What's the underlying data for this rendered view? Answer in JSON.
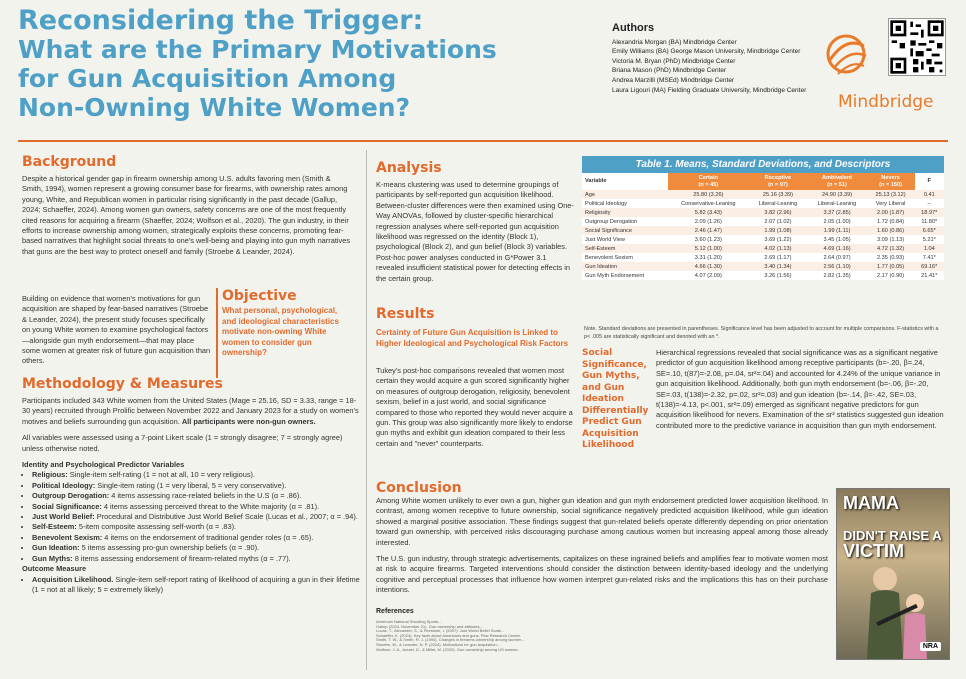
{
  "title": {
    "line1": "Reconsidering the Trigger:",
    "line2": "What are the Primary Motivations",
    "line3": "for Gun Acquisition Among",
    "line4": "Non-Owning White Women?"
  },
  "authors": {
    "heading": "Authors",
    "list": [
      "Alexandria Morgan (BA) Mindbridge Center",
      "Emily Williams (BA) George Mason University, Mindbridge Center",
      "Victoria M. Bryan (PhD) Mindbridge Center",
      "Briana Mason (PhD) Mindbridge Center",
      "Andrea Marzilli (MSEd) Mindbridge Center",
      "Laura Ligouri (MA) Fielding Graduate University, Mindbridge Center"
    ]
  },
  "brand": "Mindbridge",
  "background": {
    "heading": "Background",
    "p1": "Despite a historical gender gap in firearm ownership among U.S. adults favoring men (Smith & Smith, 1994), women represent a growing consumer base for firearms, with ownership rates among young, White, and Republican women in particular rising significantly in the past decade (Gallup, 2024; Schaeffer, 2024). Among women gun owners, safety concerns are one of the most frequently cited reasons for acquiring a firearm (Shaeffer, 2024; Wolfson et al., 2020). The gun industry, in their efforts to increase ownership among women, strategically exploits these concerns, promoting fear-based narratives that highlight social threats to one's well-being and playing into gun myth narratives that guns are the best way to protect oneself and family (Stroebe & Leander, 2024).",
    "p2": "Building on evidence that women's motivations for gun acquisition are shaped by fear-based narratives (Stroebe & Leander, 2024), the present study focuses specifically on young White women to examine psychological factors—alongside gun myth endorsement—that may place some women at greater risk of future gun acquisition than others."
  },
  "objective": {
    "heading": "Objective",
    "text": "What personal, psychological, and ideological characteristics motivate non-owning White women to consider gun ownership?"
  },
  "methods": {
    "heading": "Methodology & Measures",
    "p1": "Participants included 343 White women from the United States (Mage = 25.16, SD = 3.33, range = 18-30 years) recruited through Prolific between November 2022 and January 2023 for a study on women's motives and beliefs surrounding gun acquisition.",
    "p1b": "All participants were non-gun owners.",
    "p2": "All variables were assessed using a 7-point Likert scale (1 = strongly disagree; 7 = strongly agree) unless otherwise noted.",
    "predHeading": "Identity and Psychological Predictor Variables",
    "preds": [
      {
        "name": "Religious:",
        "text": " Single-item self-rating (1 = not at all, 10 = very religious)."
      },
      {
        "name": "Political Ideology:",
        "text": " Single-item rating (1 = very liberal, 5 = very conservative)."
      },
      {
        "name": "Outgroup Derogation:",
        "text": " 4 items assessing race-related beliefs in the U.S (α = .86)."
      },
      {
        "name": "Social Significance:",
        "text": " 4 items assessing perceived threat to the White majority (α = .81)."
      },
      {
        "name": "Just World Belief:",
        "text": " Procedural and Distributive Just World Belief Scale (Lucas et al., 2007; α = .94)."
      },
      {
        "name": "Self-Esteem:",
        "text": " 5-item composite assessing self-worth (α = .83)."
      },
      {
        "name": "Benevolent Sexism:",
        "text": " 4 items on the endorsement of traditional gender roles (α = .65)."
      },
      {
        "name": "Gun Ideation:",
        "text": " 5 items assessing pro-gun ownership beliefs (α = .90)."
      },
      {
        "name": "Gun Myths:",
        "text": " 8 items assessing endorsement of firearm-related myths (α = .77)."
      }
    ],
    "outcomeHeading": "Outcome Measure",
    "outcome": {
      "name": "Acquisition Likelihood.",
      "text": " Single-item self-report rating of likelihood of acquiring a gun in their lifetime (1 = not at all likely; 5 = extremely likely)"
    }
  },
  "analysis": {
    "heading": "Analysis",
    "text": "K-means clustering was used to determine groupings of participants by self-reported gun acquisition likelihood. Between-cluster differences were then examined using One-Way ANOVAs, followed by cluster-specific hierarchical regression analyses where self-reported gun acquisition likelihood was regressed on the identity (Block 1), psychological (Block 2), and gun belief (Block 3) variables. Post-hoc power analyses conducted in G*Power 3.1 revealed insufficient statistical power for detecting effects in the certain group."
  },
  "results": {
    "heading": "Results",
    "subheading": "Certainty of Future Gun Acquisition is Linked to Higher Ideological and Psychological Risk Factors",
    "text": "Tukey's post-hoc comparisons revealed that women most certain they would acquire a gun scored significantly higher on measures of outgroup derogation, religiosity, benevolent sexism, belief in a just world, and social significance compared to those who reported they would never acquire a gun. This group was also significantly more likely to endorse gun myths and exhibit gun ideation compared to their less certain and \"never\" counterparts."
  },
  "table": {
    "caption": "Table 1. Means, Standard Deviations, and Descriptors",
    "headers": [
      "Variable",
      "Certain\n(n = 45)",
      "Receptive\n(n = 97)",
      "Ambivalent\n(n = 51)",
      "Nevers\n(n = 150)",
      "F"
    ],
    "rows": [
      [
        "Age",
        "25.80 (3.26)",
        "25.16 (3.39)",
        "24.90 (3.39)",
        "25.13 (3.12)",
        "0.41"
      ],
      [
        "Political Ideology",
        "Conservative-Leaning",
        "Liberal-Leaning",
        "Liberal-Leaning",
        "Very Liberal",
        "--"
      ],
      [
        "Religiosity",
        "5.82 (3.43)",
        "3.82 (2.96)",
        "3.37 (2.85)",
        "2.00 (1.87)",
        "18.97*"
      ],
      [
        "Outgroup Derogation",
        "2.09 (1.26)",
        "2.07 (1.02)",
        "2.05 (1.00)",
        "1.72 (0.84)",
        "11.80*"
      ],
      [
        "Social Significance",
        "2.46 (1.47)",
        "1.99 (1.08)",
        "1.99 (1.11)",
        "1.60 (0.86)",
        "6.65*"
      ],
      [
        "Just World View",
        "3.60 (1.23)",
        "3.69 (1.22)",
        "3.45 (1.05)",
        "3.09 (1.13)",
        "5.21*"
      ],
      [
        "Self-Esteem",
        "5.12 (1.00)",
        "4.02 (1.13)",
        "4.69 (1.16)",
        "4.72 (1.32)",
        "1.04"
      ],
      [
        "Benevolent Sexism",
        "3.31 (1.20)",
        "2.69 (1.17)",
        "2.64 (0.97)",
        "2.35 (0.93)",
        "7.41*"
      ],
      [
        "Gun Ideation",
        "4.66 (1.30)",
        "3.40 (1.34)",
        "2.56 (1.10)",
        "1.77 (0.05)",
        "69.16*"
      ],
      [
        "Gun Myth Endorsement",
        "4.07 (2.09)",
        "3.26 (1.56)",
        "2.82 (1.35)",
        "2.17 (0.90)",
        "21.41*"
      ]
    ],
    "note": "Note. Standard deviations are presented in parentheses. Significance level has been adjusted to account for multiple comparisons. F-statistics with a p< .005 are statistically significant and denoted with an *."
  },
  "side": {
    "heading": "Social Significance, Gun Myths, and Gun Ideation Differentially Predict Gun Acquisition Likelihood",
    "text": "Hierarchical regressions revealed that social significance was as a significant negative predictor of gun acquisition likelihood among receptive participants (b=-.20, β=.24, SE=.10, t(87)=-2.08, p=.04, sr²=.04) and accounted for 4.24% of the unique variance in gun acquisition likelihood. Additionally, both gun myth endorsement (b=-.06, β=-.20, SE=.03, t(138)=-2.32, p=.02, sr²=.03) and gun ideation (b=-.14, β=-.42, SE=.03, t(138)=-4.13, p<.001, sr²=.09) emerged as significant negative predictors for gun acquisition likelihood for nevers. Examination of the sr² statistics suggested gun ideation contributed more to the predictive variance in acquisition than gun myth endorsement."
  },
  "conclusion": {
    "heading": "Conclusion",
    "p1": "Among White women unlikely to ever own a gun, higher gun ideation and gun myth endorsement predicted lower acquisition likelihood. In contrast, among women receptive to future ownership, social significance negatively predicted acquisition likelihood, while gun ideation showed a marginal positive association. These findings suggest that gun-related beliefs operate differently depending on prior orientation toward gun ownership, with perceived risks discouraging purchase among cautious women but increasing appeal among those already interested.",
    "p2": "The U.S. gun industry, through strategic advertisements, capitalizes on these ingrained beliefs and amplifies fear to motivate women most at risk to acquire firearms. Targeted interventions should consider the distinction between identity-based ideology and the underlying cognitive and perceptual processes that influence how women interpret gun-related risks and the implications this has on their purchase intentions."
  },
  "references": {
    "heading": "References",
    "lines": [
      "American National Shooting Sports...",
      "Gallup (2024, November 21). Gun ownership and attitudes...",
      "Lucas, T., Alexander, S., & Firestone, I. (2007). Just World Belief Scale...",
      "Schaeffer, K. (2024). Key facts about Americans and guns. Pew Research Center.",
      "Smith, T. W., & Smith, R. J. (1994). Changes in firearms ownership among women...",
      "Stroebe, W., & Leander, N. P. (2024). Motivations for gun acquisition...",
      "Wolfson, J. A., Azrael, D., & Miller, M. (2020). Gun ownership among US women."
    ]
  },
  "ad": {
    "line1": "MAMA",
    "line2": "DIDN'T RAISE A",
    "line3": "VICTIM",
    "tag": "NRA"
  }
}
